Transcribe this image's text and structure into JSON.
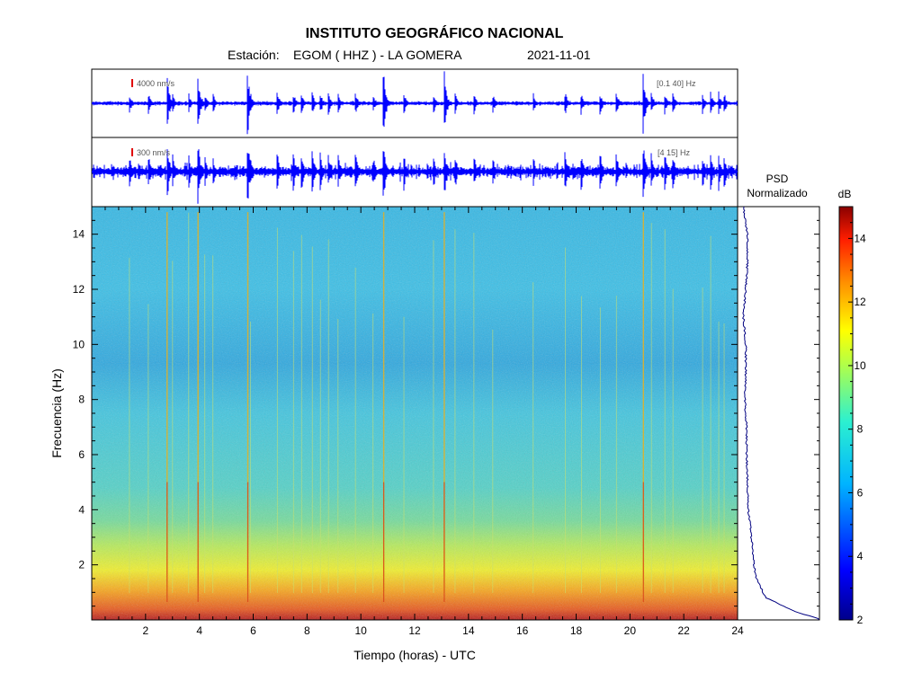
{
  "header": {
    "title": "INSTITUTO GEOGRÁFICO NACIONAL",
    "station_label": "Estación:",
    "station": "EGOM ( HHZ ) - LA GOMERA",
    "date": "2021-11-01"
  },
  "trace1": {
    "scale_label": "4000 nm/s",
    "filter_label": "[0.1 40] Hz",
    "color": "#0000ff"
  },
  "trace2": {
    "scale_label": "300 nm/s",
    "filter_label": "[4 15] Hz",
    "color": "#0000ff"
  },
  "psd": {
    "label_line1": "PSD",
    "label_line2": "Normalizado"
  },
  "colorbar": {
    "unit": "dB",
    "ticks": [
      "2",
      "4",
      "6",
      "8",
      "10",
      "12",
      "14"
    ],
    "range": [
      2,
      15
    ]
  },
  "chart_data": {
    "type": "heatmap",
    "xlabel": "Tiempo (horas) - UTC",
    "ylabel": "Frecuencia  (Hz)",
    "xlim": [
      0,
      24
    ],
    "ylim": [
      0,
      15
    ],
    "x_ticks": [
      "2",
      "4",
      "6",
      "8",
      "10",
      "12",
      "14",
      "16",
      "18",
      "20",
      "22",
      "24"
    ],
    "y_ticks": [
      "2",
      "4",
      "6",
      "8",
      "10",
      "12",
      "14"
    ],
    "event_times_hours": [
      1.4,
      2.1,
      2.8,
      3.0,
      3.6,
      3.95,
      4.2,
      4.5,
      5.8,
      5.9,
      6.9,
      7.5,
      7.8,
      8.2,
      8.5,
      8.8,
      9.15,
      9.8,
      10.45,
      10.85,
      11.6,
      12.7,
      13.1,
      13.5,
      14.2,
      14.9,
      16.4,
      17.6,
      18.2,
      18.9,
      19.5,
      20.5,
      20.8,
      21.3,
      21.6,
      22.7,
      23.0,
      23.3,
      23.5
    ],
    "psd_profile": {
      "freq_hz": [
        0.05,
        0.3,
        0.8,
        1.5,
        2.0,
        3.0,
        4.0,
        5.0,
        6.0,
        7.0,
        8.0,
        9.0,
        10.0,
        11.0,
        12.0,
        13.0,
        14.0,
        15.0
      ],
      "norm_value": [
        0.99,
        0.7,
        0.34,
        0.22,
        0.19,
        0.16,
        0.12,
        0.11,
        0.1,
        0.1,
        0.08,
        0.09,
        0.09,
        0.06,
        0.09,
        0.11,
        0.11,
        0.06
      ]
    }
  }
}
